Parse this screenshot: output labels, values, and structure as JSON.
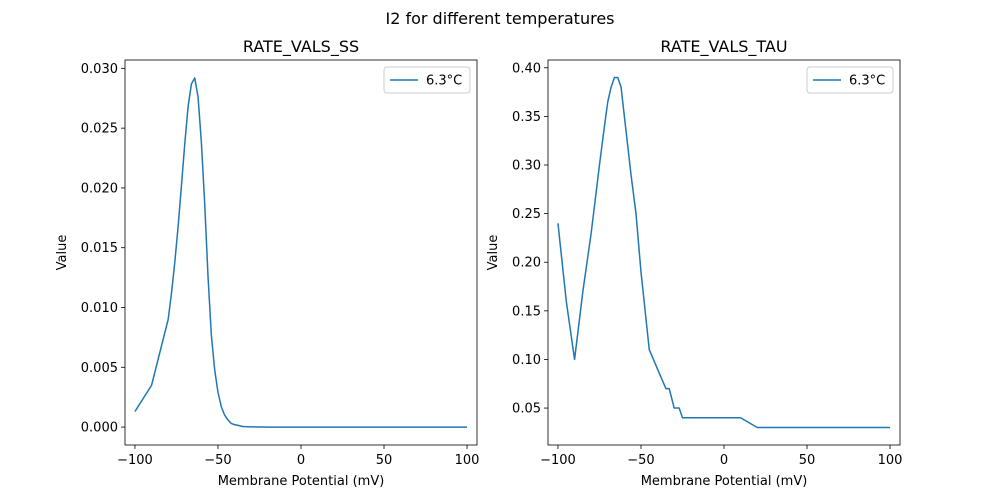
{
  "figure": {
    "suptitle": "I2 for different temperatures"
  },
  "chart_data": [
    {
      "type": "line",
      "title": "RATE_VALS_SS",
      "xlabel": "Membrane Potential (mV)",
      "ylabel": "Value",
      "xlim": [
        -106,
        106
      ],
      "ylim": [
        -0.0015,
        0.0307
      ],
      "xticks": [
        -100,
        -50,
        0,
        50,
        100
      ],
      "xtick_labels": [
        "−100",
        "−50",
        "0",
        "50",
        "100"
      ],
      "yticks": [
        0.0,
        0.005,
        0.01,
        0.015,
        0.02,
        0.025,
        0.03
      ],
      "ytick_labels": [
        "0.000",
        "0.005",
        "0.010",
        "0.015",
        "0.020",
        "0.025",
        "0.030"
      ],
      "grid": false,
      "legend_position": "top-right",
      "series": [
        {
          "name": "6.3°C",
          "color": "#1f77b4",
          "x": [
            -100,
            -90,
            -80,
            -78,
            -76,
            -74,
            -72,
            -70,
            -68,
            -66,
            -64,
            -62,
            -60,
            -58,
            -56,
            -54,
            -52,
            -50,
            -48,
            -46,
            -44,
            -42,
            -40,
            -35,
            -30,
            -20,
            0,
            50,
            100
          ],
          "y": [
            0.0013,
            0.0035,
            0.009,
            0.0112,
            0.0138,
            0.0168,
            0.0202,
            0.0237,
            0.0268,
            0.0287,
            0.0292,
            0.0276,
            0.0238,
            0.0187,
            0.0126,
            0.0077,
            0.0048,
            0.0029,
            0.0017,
            0.001,
            0.0006,
            0.0003,
            0.0002,
            5e-05,
            2e-05,
            0.0,
            0.0,
            0.0,
            0.0
          ]
        }
      ]
    },
    {
      "type": "line",
      "title": "RATE_VALS_TAU",
      "xlabel": "Membrane Potential (mV)",
      "ylabel": "Value",
      "xlim": [
        -106,
        106
      ],
      "ylim": [
        0.012,
        0.408
      ],
      "xticks": [
        -100,
        -50,
        0,
        50,
        100
      ],
      "xtick_labels": [
        "−100",
        "−50",
        "0",
        "50",
        "100"
      ],
      "yticks": [
        0.05,
        0.1,
        0.15,
        0.2,
        0.25,
        0.3,
        0.35,
        0.4
      ],
      "ytick_labels": [
        "0.05",
        "0.10",
        "0.15",
        "0.20",
        "0.25",
        "0.30",
        "0.35",
        "0.40"
      ],
      "grid": false,
      "legend_position": "top-right",
      "series": [
        {
          "name": "6.3°C",
          "color": "#1f77b4",
          "x": [
            -100,
            -95,
            -90,
            -85,
            -80,
            -75,
            -72,
            -70,
            -68,
            -66,
            -64,
            -62,
            -60,
            -58,
            -56,
            -53,
            -50,
            -45,
            -40,
            -35,
            -33,
            -30,
            -27,
            -25,
            -20,
            10,
            20,
            100
          ],
          "y": [
            0.24,
            0.16,
            0.1,
            0.17,
            0.23,
            0.3,
            0.34,
            0.365,
            0.38,
            0.39,
            0.39,
            0.38,
            0.35,
            0.32,
            0.29,
            0.25,
            0.19,
            0.11,
            0.09,
            0.07,
            0.07,
            0.05,
            0.05,
            0.04,
            0.04,
            0.04,
            0.03,
            0.03
          ]
        }
      ]
    }
  ]
}
